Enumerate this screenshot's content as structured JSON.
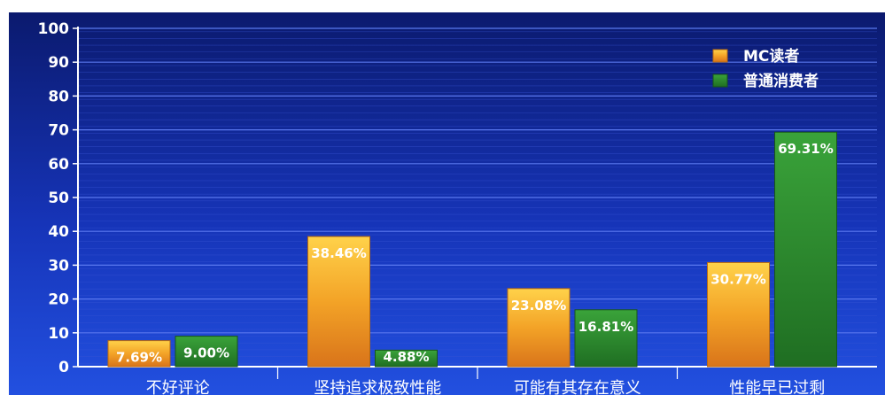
{
  "chart_data": {
    "type": "bar",
    "categories": [
      "不好评论",
      "坚持追求极致性能",
      "可能有其存在意义",
      "性能早已过剩"
    ],
    "series": [
      {
        "name": "MC读者",
        "values": [
          7.69,
          38.46,
          23.08,
          30.77
        ],
        "labels": [
          "7.69%",
          "38.46%",
          "23.08%",
          "30.77%"
        ],
        "color": "#f0a020"
      },
      {
        "name": "普通消费者",
        "values": [
          9.0,
          4.88,
          16.81,
          69.31
        ],
        "labels": [
          "9.00%",
          "4.88%",
          "16.81%",
          "69.31%"
        ],
        "color": "#2f8a2a"
      }
    ],
    "ylim": [
      0,
      100
    ],
    "yticks": [
      "0",
      "10",
      "20",
      "30",
      "40",
      "50",
      "60",
      "70",
      "80",
      "90",
      "100"
    ],
    "grid": true,
    "legend_position": "top-right",
    "background_color": "#1a2fb0"
  }
}
